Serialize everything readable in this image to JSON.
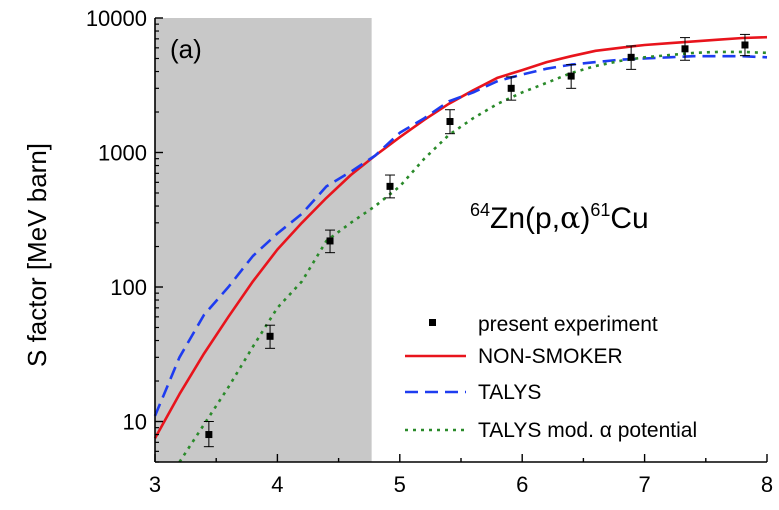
{
  "chart_data": {
    "type": "line",
    "panel_label": "(a)",
    "ylabel": "S factor [MeV barn]",
    "xlabel": "",
    "xlim": [
      3,
      8
    ],
    "ylim": [
      5,
      10000
    ],
    "yscale": "log",
    "x_ticks": [
      "3",
      "4",
      "5",
      "6",
      "7",
      "8"
    ],
    "y_ticks": [
      {
        "value": 10,
        "label": "10"
      },
      {
        "value": 100,
        "label": "100"
      },
      {
        "value": 1000,
        "label": "1000"
      },
      {
        "value": 10000,
        "label": "10000"
      }
    ],
    "shaded_region": {
      "x_from": 3,
      "x_to": 4.77,
      "color": "#c8c8c8"
    },
    "reaction": {
      "mass_a": "64",
      "element_a": "Zn(p,",
      "alpha": "α",
      "close": ")",
      "mass_b": "61",
      "element_b": "Cu"
    },
    "legend_position": "bottom-right",
    "series": [
      {
        "name": "present experiment",
        "kind": "points",
        "color": "#000000",
        "points": [
          {
            "x": 3.44,
            "y": 8,
            "err_low": 6.5,
            "err_high": 10
          },
          {
            "x": 3.94,
            "y": 43,
            "err_low": 35,
            "err_high": 52
          },
          {
            "x": 4.43,
            "y": 220,
            "err_low": 180,
            "err_high": 265
          },
          {
            "x": 4.92,
            "y": 560,
            "err_low": 460,
            "err_high": 680
          },
          {
            "x": 5.41,
            "y": 1700,
            "err_low": 1380,
            "err_high": 2080
          },
          {
            "x": 5.91,
            "y": 3000,
            "err_low": 2450,
            "err_high": 3650
          },
          {
            "x": 6.4,
            "y": 3700,
            "err_low": 3000,
            "err_high": 4500
          },
          {
            "x": 6.89,
            "y": 5100,
            "err_low": 4150,
            "err_high": 6200
          },
          {
            "x": 7.33,
            "y": 5900,
            "err_low": 4850,
            "err_high": 7150
          },
          {
            "x": 7.82,
            "y": 6300,
            "err_low": 5250,
            "err_high": 7550
          }
        ]
      },
      {
        "name": "NON-SMOKER",
        "kind": "line",
        "color": "#e8141c",
        "dash": "solid",
        "x": [
          3.0,
          3.2,
          3.4,
          3.6,
          3.8,
          4.0,
          4.2,
          4.4,
          4.6,
          4.8,
          5.0,
          5.2,
          5.4,
          5.6,
          5.8,
          6.0,
          6.2,
          6.4,
          6.6,
          6.8,
          7.0,
          7.2,
          7.4,
          7.6,
          7.8,
          8.0
        ],
        "y": [
          7.5,
          16,
          32,
          60,
          110,
          190,
          300,
          460,
          680,
          950,
          1300,
          1750,
          2300,
          2900,
          3600,
          4100,
          4700,
          5200,
          5700,
          6000,
          6300,
          6500,
          6700,
          6900,
          7100,
          7200
        ]
      },
      {
        "name": "TALYS",
        "kind": "line",
        "color": "#1e3cf0",
        "dash": "long-dash",
        "x": [
          3.0,
          3.2,
          3.4,
          3.6,
          3.8,
          4.0,
          4.2,
          4.4,
          4.6,
          4.8,
          5.0,
          5.2,
          5.4,
          5.6,
          5.8,
          6.0,
          6.2,
          6.4,
          6.6,
          6.8,
          7.0,
          7.2,
          7.4,
          7.6,
          7.8,
          8.0
        ],
        "y": [
          11,
          30,
          62,
          100,
          170,
          250,
          350,
          560,
          720,
          950,
          1400,
          1800,
          2400,
          2800,
          3400,
          3800,
          4200,
          4500,
          4700,
          4900,
          5000,
          5100,
          5200,
          5200,
          5200,
          5100
        ]
      },
      {
        "name": "TALYS mod. α potential",
        "kind": "line",
        "color": "#2a8a2a",
        "dash": "dotted",
        "x": [
          3.2,
          3.4,
          3.6,
          3.8,
          4.0,
          4.2,
          4.4,
          4.6,
          4.8,
          5.0,
          5.2,
          5.4,
          5.6,
          5.8,
          6.0,
          6.2,
          6.4,
          6.6,
          6.8,
          7.0,
          7.2,
          7.4,
          7.6,
          7.8,
          8.0
        ],
        "y": [
          5,
          9.5,
          18,
          36,
          70,
          110,
          220,
          300,
          400,
          560,
          900,
          1350,
          1800,
          2300,
          2800,
          3300,
          3900,
          4400,
          4800,
          5100,
          5300,
          5500,
          5600,
          5600,
          5500
        ]
      }
    ]
  }
}
